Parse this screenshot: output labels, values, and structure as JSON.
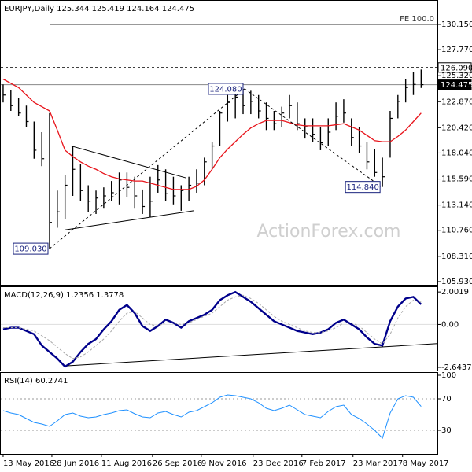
{
  "chart_data": [
    {
      "type": "hlc",
      "title": "EURJPY,Daily  125.344 125.419 124.164 124.475",
      "watermark": "ActionForex.com",
      "color": "#000000",
      "x": [
        0,
        1,
        2,
        3,
        4,
        5,
        6,
        7,
        8,
        9,
        10,
        11,
        12,
        13,
        14,
        15,
        16,
        17,
        18,
        19,
        20,
        21,
        22,
        23,
        24,
        25,
        26,
        27,
        28,
        29,
        30,
        31,
        32,
        33,
        34,
        35,
        36,
        37,
        38,
        39,
        40,
        41,
        42,
        43,
        44,
        45,
        46,
        47,
        48,
        49,
        50,
        51,
        52,
        53,
        54
      ],
      "high": [
        124.5,
        124.0,
        123.2,
        122.5,
        121.0,
        120.0,
        121.8,
        114.5,
        116.0,
        118.7,
        117.0,
        115.0,
        114.5,
        114.8,
        115.4,
        116.2,
        116.2,
        115.8,
        114.6,
        115.8,
        116.9,
        116.5,
        115.8,
        115.0,
        115.8,
        116.5,
        117.6,
        119.1,
        122.0,
        123.5,
        123.9,
        124.08,
        123.9,
        123.5,
        122.8,
        122.0,
        122.4,
        123.5,
        122.8,
        121.3,
        121.3,
        120.5,
        121.3,
        122.8,
        123.1,
        121.3,
        120.5,
        119.1,
        118.4,
        117.6,
        122.0,
        123.5,
        125.0,
        125.7,
        125.9
      ],
      "low": [
        122.8,
        122.0,
        121.5,
        120.5,
        117.5,
        116.8,
        109.03,
        111.0,
        111.8,
        114.0,
        113.5,
        112.5,
        112.3,
        112.8,
        113.5,
        113.2,
        113.9,
        112.8,
        112.3,
        112.0,
        114.3,
        113.5,
        113.2,
        112.6,
        113.5,
        114.3,
        115.0,
        116.5,
        118.7,
        121.0,
        121.3,
        121.7,
        121.7,
        121.3,
        120.2,
        120.2,
        120.5,
        121.3,
        120.2,
        119.4,
        119.1,
        118.3,
        118.7,
        120.2,
        120.9,
        118.7,
        118.0,
        116.5,
        115.8,
        114.84,
        117.6,
        121.3,
        122.8,
        123.5,
        124.164
      ],
      "close": [
        123.5,
        122.5,
        121.8,
        121.0,
        118.3,
        117.5,
        111.5,
        112.5,
        115.0,
        116.5,
        114.5,
        113.5,
        113.8,
        114.0,
        114.3,
        115.5,
        114.8,
        114.0,
        113.0,
        113.5,
        115.5,
        114.2,
        114.0,
        114.5,
        115.0,
        115.2,
        117.2,
        118.7,
        121.8,
        122.8,
        123.3,
        122.5,
        122.9,
        122.0,
        121.3,
        120.8,
        121.8,
        122.5,
        120.8,
        120.5,
        119.8,
        119.0,
        120.0,
        121.5,
        121.8,
        119.5,
        118.7,
        117.2,
        116.2,
        115.8,
        121.3,
        122.9,
        124.2,
        124.5,
        124.475
      ],
      "series": [
        {
          "color": "#e8141b",
          "values": [
            125.0,
            124.6,
            124.2,
            123.5,
            122.8,
            122.4,
            122.0,
            120.2,
            118.3,
            117.7,
            117.2,
            116.8,
            116.5,
            116.1,
            115.8,
            115.6,
            115.5,
            115.4,
            115.4,
            115.2,
            115.0,
            114.8,
            114.6,
            114.6,
            114.6,
            114.9,
            115.5,
            116.5,
            117.6,
            118.4,
            119.1,
            119.8,
            120.4,
            120.8,
            121.1,
            121.1,
            121.1,
            120.9,
            120.7,
            120.6,
            120.6,
            120.6,
            120.6,
            120.7,
            120.8,
            120.5,
            120.2,
            119.7,
            119.2,
            119.1,
            119.1,
            119.6,
            120.2,
            121.0,
            121.8
          ]
        }
      ],
      "ylim": [
        105.63,
        132.37
      ],
      "yticks": [
        {
          "value": 130.15,
          "label": "130.150"
        },
        {
          "value": 127.77,
          "label": "127.770"
        },
        {
          "value": 125.32,
          "label": "125.320"
        },
        {
          "value": 122.87,
          "label": "122.870"
        },
        {
          "value": 120.42,
          "label": "120.420"
        },
        {
          "value": 118.04,
          "label": "118.040"
        },
        {
          "value": 115.59,
          "label": "115.590"
        },
        {
          "value": 113.14,
          "label": "113.140"
        },
        {
          "value": 110.76,
          "label": "110.760"
        },
        {
          "value": 108.31,
          "label": "108.310"
        },
        {
          "value": 105.93,
          "label": "105.930"
        }
      ],
      "xlim": [
        -0.3,
        56.1
      ],
      "xticks": [
        {
          "value": 0,
          "label": "13 May 2016"
        },
        {
          "value": 6.3,
          "label": "28 Jun 2016"
        },
        {
          "value": 12.7,
          "label": "11 Aug 2016"
        },
        {
          "value": 19.3,
          "label": "26 Sep 2016"
        },
        {
          "value": 25.6,
          "label": "9 Nov 2016"
        },
        {
          "value": 32.3,
          "label": "23 Dec 2016"
        },
        {
          "value": 38.6,
          "label": "7 Feb 2017"
        },
        {
          "value": 45.2,
          "label": "23 Mar 2017"
        },
        {
          "value": 51.6,
          "label": "8 May 2017"
        }
      ],
      "levels": [
        {
          "value": 126.09,
          "label": "126.090",
          "style": "dashed"
        },
        {
          "value": 124.475,
          "label": "124.475",
          "style": "current"
        }
      ],
      "fe": {
        "value": 130.15,
        "label": "FE 100.0",
        "x": [
          6.0,
          56.1
        ]
      },
      "lines": [
        {
          "x": [
            8.8,
            23.6
          ],
          "y": [
            118.7,
            115.7
          ],
          "dash": false
        },
        {
          "x": [
            8.0,
            24.6
          ],
          "y": [
            110.8,
            112.6
          ],
          "dash": false
        },
        {
          "x": [
            6.0,
            31.2
          ],
          "y": [
            109.03,
            124.08
          ],
          "dash": true
        },
        {
          "x": [
            31.2,
            48.9
          ],
          "y": [
            124.08,
            114.84
          ],
          "dash": true
        }
      ],
      "callouts": [
        {
          "x": 31.2,
          "value": 124.08,
          "label": "124.080"
        },
        {
          "x": 48.9,
          "value": 114.84,
          "label": "114.840"
        },
        {
          "x": 6.0,
          "value": 109.03,
          "label": "109.030"
        }
      ]
    },
    {
      "type": "macd",
      "title": "MACD(12,26,9) 1.2356 1.3778",
      "series": [
        {
          "color": "#00008b",
          "values": [
            -0.3,
            -0.2,
            -0.2,
            -0.4,
            -0.6,
            -1.3,
            -1.7,
            -2.1,
            -2.6,
            -2.3,
            -1.7,
            -1.2,
            -0.9,
            -0.3,
            0.2,
            0.9,
            1.2,
            0.7,
            -0.1,
            -0.4,
            -0.1,
            0.3,
            0.1,
            -0.2,
            0.2,
            0.4,
            0.6,
            0.9,
            1.5,
            1.8,
            2.0,
            1.7,
            1.4,
            1.0,
            0.6,
            0.2,
            0.0,
            -0.2,
            -0.4,
            -0.5,
            -0.6,
            -0.5,
            -0.3,
            0.1,
            0.3,
            0.0,
            -0.3,
            -0.8,
            -1.2,
            -1.3,
            0.2,
            1.1,
            1.6,
            1.7,
            1.2356
          ]
        },
        {
          "color": "#a8a8a8",
          "values": [
            -0.2,
            -0.2,
            -0.2,
            -0.3,
            -0.4,
            -0.7,
            -1.0,
            -1.4,
            -1.8,
            -2.1,
            -2.0,
            -1.7,
            -1.3,
            -0.9,
            -0.4,
            0.2,
            0.7,
            0.8,
            0.4,
            0.0,
            -0.1,
            0.1,
            0.1,
            0.0,
            0.1,
            0.3,
            0.5,
            0.7,
            1.1,
            1.5,
            1.7,
            1.8,
            1.6,
            1.3,
            0.9,
            0.5,
            0.2,
            0.0,
            -0.2,
            -0.4,
            -0.5,
            -0.5,
            -0.4,
            -0.2,
            0.1,
            0.1,
            -0.1,
            -0.5,
            -0.9,
            -1.2,
            -0.6,
            0.4,
            1.1,
            1.5,
            1.3778
          ]
        }
      ],
      "ylim": [
        -2.84,
        2.3
      ],
      "yticks": [
        2.0019,
        {
          "value": 0,
          "label": "0.00"
        },
        -2.6437
      ],
      "lines": [
        {
          "x": [
            8.3,
            56.1
          ],
          "y": [
            -2.55,
            -1.18
          ],
          "dash": false
        }
      ]
    },
    {
      "type": "rsi",
      "title": "RSI(14) 60.2741",
      "series": [
        {
          "color": "#1e90ff",
          "values": [
            55,
            52,
            50,
            45,
            40,
            38,
            35,
            42,
            50,
            52,
            48,
            46,
            47,
            50,
            52,
            55,
            56,
            51,
            47,
            46,
            52,
            54,
            50,
            47,
            53,
            55,
            60,
            65,
            72,
            75,
            74,
            72,
            70,
            65,
            58,
            55,
            58,
            62,
            56,
            50,
            48,
            46,
            54,
            60,
            62,
            50,
            45,
            38,
            30,
            20,
            52,
            70,
            74,
            72,
            60.2741
          ]
        }
      ],
      "ylim": [
        0,
        103
      ],
      "yticks": [
        100,
        70,
        30
      ],
      "levels": [
        70,
        30
      ]
    }
  ]
}
